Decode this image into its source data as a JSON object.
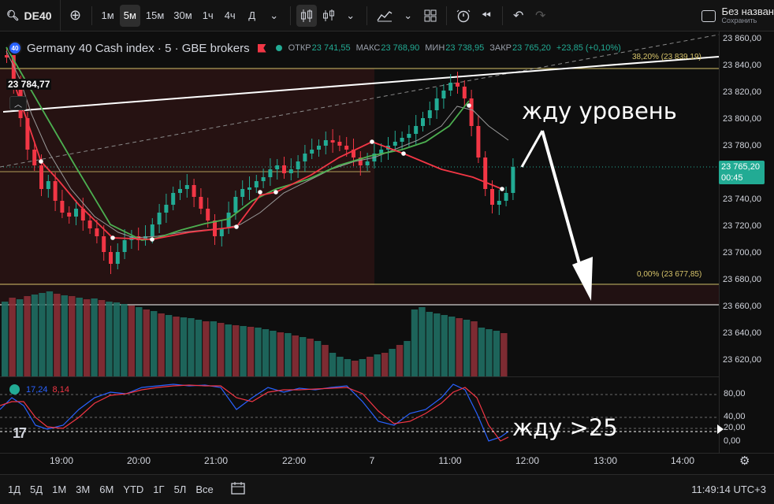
{
  "toolbar": {
    "symbol": "DE40",
    "intervals": [
      "1м",
      "5м",
      "15м",
      "30м",
      "1ч",
      "4ч",
      "Д"
    ],
    "active_interval": "5м",
    "layout_title": "Без назван",
    "layout_status": "Сохранить"
  },
  "legend": {
    "logo_text": "40",
    "title": "Germany 40 Cash index · 5 · GBE brokers",
    "open_label": "ОТКР",
    "open_value": "23 741,55",
    "high_label": "МАКС",
    "high_value": "23 768,90",
    "low_label": "МИН",
    "low_value": "23 738,95",
    "close_label": "ЗАКР",
    "close_value": "23 765,20",
    "change": "+23,85 (+0,10%)"
  },
  "chart": {
    "high_tag": "23 784,77",
    "fib_top": "38,20% (23 839,19)",
    "fib_bottom": "0,00% (23 677,85)",
    "current_price": "23 765,20",
    "countdown": "00:45",
    "annotation_1": "жду уровень",
    "annotation_2": "жду >25",
    "colors": {
      "up": "#22ab94",
      "down": "#f23645",
      "fib": "#d6c36a",
      "fast_ma": "#f23645",
      "slow_ma": "#4caf50"
    }
  },
  "price_axis": [
    "23 860,00",
    "23 840,00",
    "23 820,00",
    "23 800,00",
    "23 780,00",
    "23 760,00",
    "23 740,00",
    "23 720,00",
    "23 700,00",
    "23 680,00",
    "23 660,00",
    "23 640,00",
    "23 620,00"
  ],
  "oscillator": {
    "k_value": "17,24",
    "d_value": "8,14",
    "axis": [
      "80,00",
      "40,00",
      "20,00",
      "0,00"
    ]
  },
  "time_axis": [
    "19:00",
    "20:00",
    "21:00",
    "22:00",
    "7",
    "11:00",
    "12:00",
    "13:00",
    "14:00"
  ],
  "bottom": {
    "ranges": [
      "1Д",
      "5Д",
      "1М",
      "3М",
      "6М",
      "YTD",
      "1Г",
      "5Л",
      "Все"
    ],
    "clock": "11:49:14 UTC+3"
  },
  "icons": [
    "search-icon",
    "add-symbol-icon",
    "candles-icon",
    "indicators-icon",
    "templates-icon",
    "alert-icon",
    "replay-icon",
    "undo-icon",
    "redo-icon",
    "fullscreen-icon",
    "settings-icon",
    "calendar-icon"
  ]
}
